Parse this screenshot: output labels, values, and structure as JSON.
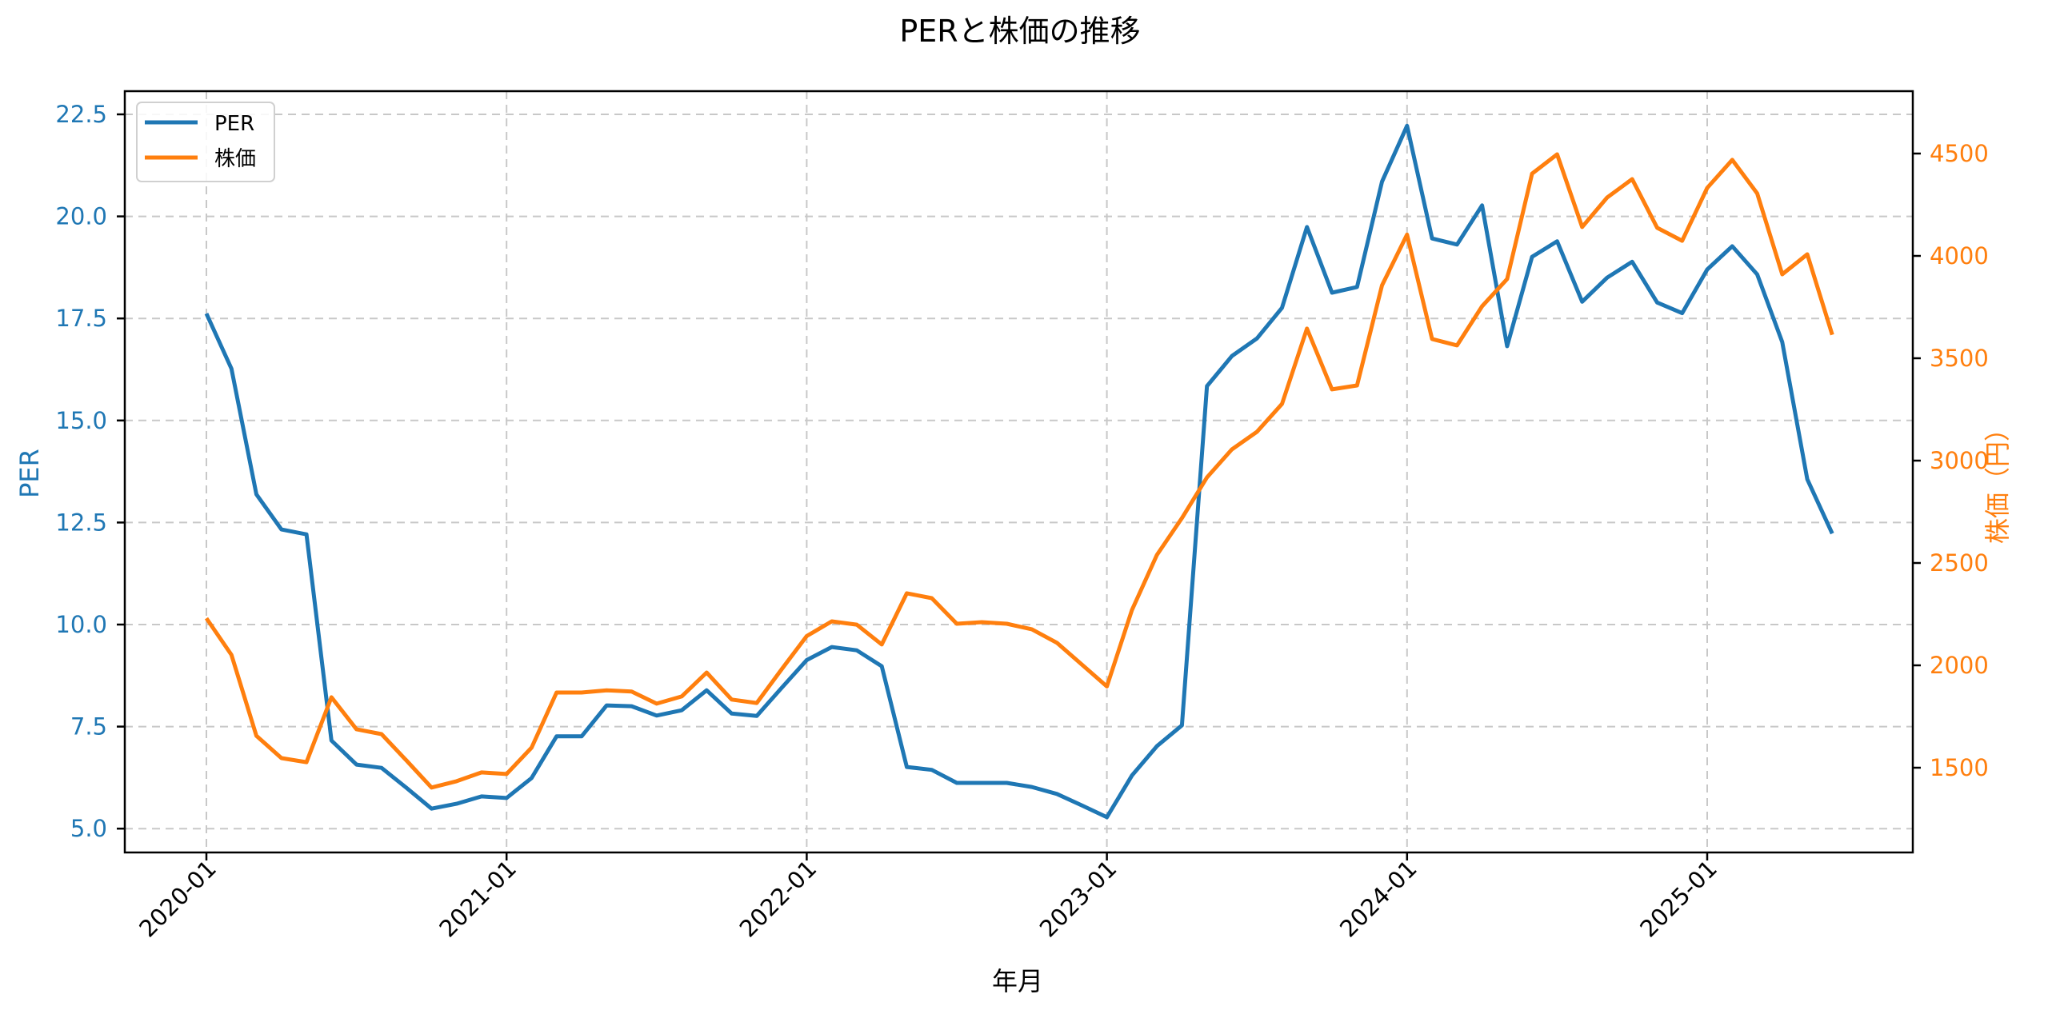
{
  "title": "PERと株価の推移",
  "colors": {
    "per": "#1f77b4",
    "price": "#ff7f0e",
    "grid": "#c8c8c8",
    "axis": "#000000"
  },
  "legend": {
    "items": [
      {
        "label": "PER",
        "color": "#1f77b4"
      },
      {
        "label": "株価",
        "color": "#ff7f0e"
      }
    ]
  },
  "axes": {
    "xlabel": "年月",
    "ylabel_left": "PER",
    "ylabel_right": "株価（円）",
    "x_ticks": [
      "2020-01",
      "2021-01",
      "2022-01",
      "2023-01",
      "2024-01",
      "2025-01"
    ],
    "y_left_ticks": [
      "5.0",
      "7.5",
      "10.0",
      "12.5",
      "15.0",
      "17.5",
      "20.0",
      "22.5"
    ],
    "y_right_ticks": [
      "1500",
      "2000",
      "2500",
      "3000",
      "3500",
      "4000",
      "4500"
    ]
  },
  "chart_data": {
    "type": "line",
    "title": "PERと株価の推移",
    "xlabel": "年月",
    "ylabel": "PER",
    "ylabel_right": "株価（円）",
    "ylim_left": [
      4.4,
      23.0
    ],
    "ylim_right": [
      1130,
      4820
    ],
    "grid": true,
    "legend_position": "upper left",
    "x": [
      "2020-01",
      "2020-02",
      "2020-03",
      "2020-04",
      "2020-05",
      "2020-06",
      "2020-07",
      "2020-08",
      "2020-09",
      "2020-10",
      "2020-11",
      "2020-12",
      "2021-01",
      "2021-02",
      "2021-03",
      "2021-04",
      "2021-05",
      "2021-06",
      "2021-07",
      "2021-08",
      "2021-09",
      "2021-10",
      "2021-11",
      "2021-12",
      "2022-01",
      "2022-02",
      "2022-03",
      "2022-04",
      "2022-05",
      "2022-06",
      "2022-07",
      "2022-08",
      "2022-09",
      "2022-10",
      "2022-11",
      "2022-12",
      "2023-01",
      "2023-02",
      "2023-03",
      "2023-04",
      "2023-05",
      "2023-06",
      "2023-07",
      "2023-08",
      "2023-09",
      "2023-10",
      "2023-11",
      "2023-12",
      "2024-01",
      "2024-02",
      "2024-03",
      "2024-04",
      "2024-05",
      "2024-06",
      "2024-07",
      "2024-08",
      "2024-09",
      "2024-10",
      "2024-11",
      "2024-12",
      "2025-01",
      "2025-02",
      "2025-03",
      "2025-04",
      "2025-05",
      "2025-06"
    ],
    "series": [
      {
        "name": "PER",
        "axis": "left",
        "color": "#1f77b4",
        "values": [
          17.62,
          16.27,
          13.19,
          12.33,
          12.21,
          7.16,
          6.57,
          6.49,
          6.0,
          5.49,
          5.61,
          5.79,
          5.75,
          6.24,
          7.26,
          7.26,
          8.02,
          8.0,
          7.77,
          7.9,
          8.39,
          7.82,
          7.76,
          8.45,
          9.13,
          9.45,
          9.37,
          8.98,
          6.51,
          6.44,
          6.12,
          6.12,
          6.12,
          6.02,
          5.85,
          5.57,
          5.28,
          6.3,
          7.02,
          7.53,
          15.84,
          16.58,
          17.01,
          17.76,
          19.74,
          18.13,
          18.27,
          20.85,
          22.22,
          19.46,
          19.31,
          20.27,
          16.82,
          19.01,
          19.39,
          17.91,
          18.5,
          18.89,
          17.89,
          17.63,
          18.7,
          19.27,
          18.58,
          16.92,
          13.56,
          12.23
        ]
      },
      {
        "name": "株価",
        "axis": "right",
        "color": "#ff7f0e",
        "values": [
          2230,
          2051,
          1656,
          1547,
          1527,
          1844,
          1688,
          1664,
          1535,
          1403,
          1434,
          1477,
          1469,
          1598,
          1867,
          1867,
          1878,
          1872,
          1813,
          1848,
          1965,
          1833,
          1816,
          1981,
          2143,
          2215,
          2199,
          2102,
          2352,
          2328,
          2203,
          2211,
          2203,
          2176,
          2110,
          2004,
          1897,
          2270,
          2539,
          2719,
          2918,
          3055,
          3141,
          3277,
          3645,
          3348,
          3367,
          3856,
          4104,
          3594,
          3563,
          3754,
          3887,
          4402,
          4496,
          4141,
          4285,
          4375,
          4137,
          4074,
          4332,
          4469,
          4305,
          3910,
          4008,
          3615
        ]
      }
    ]
  }
}
